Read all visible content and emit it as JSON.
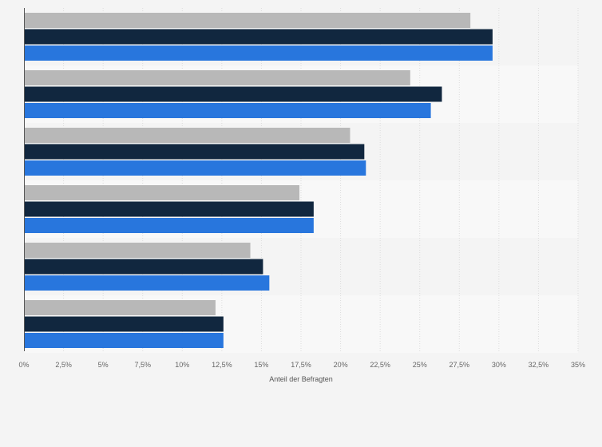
{
  "chart_data": {
    "type": "bar",
    "orientation": "horizontal",
    "title": "",
    "xlabel": "Anteil der Befragten",
    "ylabel": "",
    "xlim": [
      0,
      35
    ],
    "xtick_labels": [
      "0%",
      "2,5%",
      "5%",
      "7,5%",
      "10%",
      "12,5%",
      "15%",
      "17,5%",
      "20%",
      "22,5%",
      "25%",
      "27,5%",
      "30%",
      "32,5%",
      "35%"
    ],
    "category_count": 6,
    "categories": [
      "",
      "",
      "",
      "",
      "",
      ""
    ],
    "grid": true,
    "legend": "none",
    "series": [
      {
        "color": "#b8b8b8",
        "values": [
          28.2,
          24.4,
          20.6,
          17.4,
          14.3,
          12.1
        ]
      },
      {
        "color": "#11273f",
        "values": [
          29.6,
          26.4,
          21.5,
          18.3,
          15.1,
          12.6
        ]
      },
      {
        "color": "#2876dd",
        "values": [
          29.6,
          25.7,
          21.6,
          18.3,
          15.5,
          12.6
        ]
      }
    ]
  }
}
